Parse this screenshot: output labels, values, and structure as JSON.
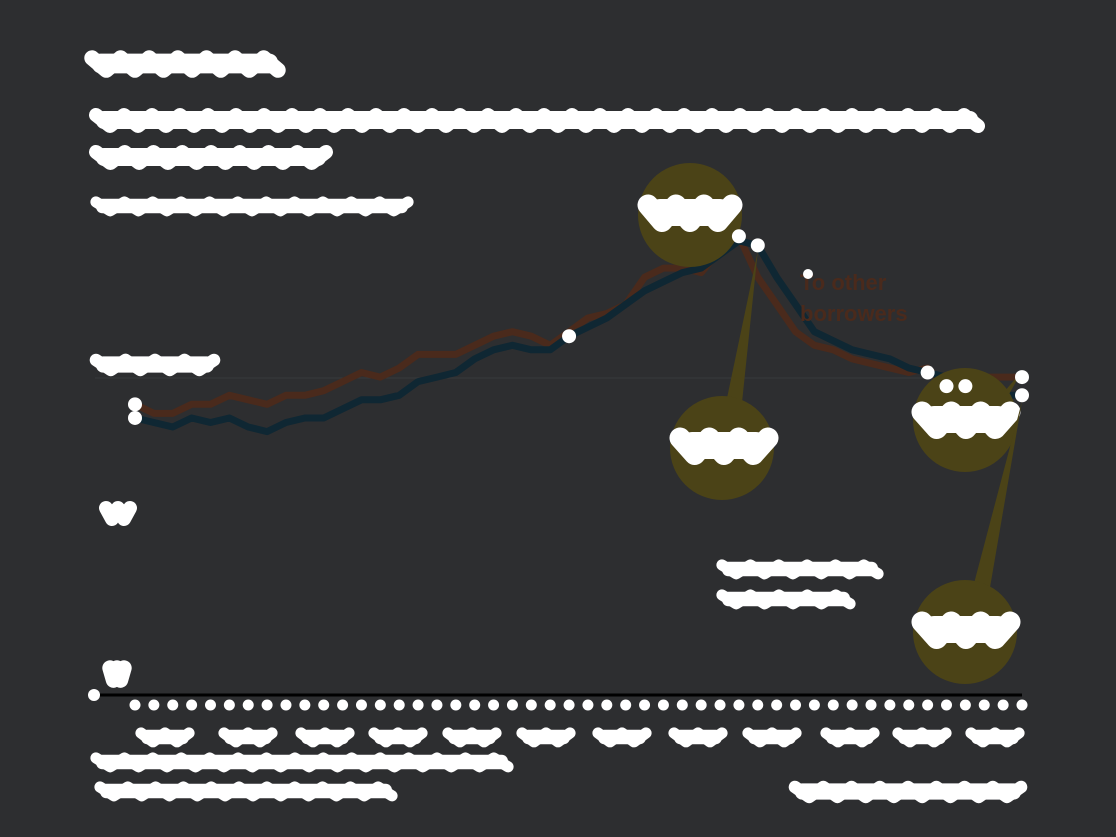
{
  "colors": {
    "background": "#2d2e30",
    "series_other": "#4a2a1c",
    "series_dark": "#0f2733",
    "bubble": "#4b4317",
    "marker": "#ffffff",
    "axis": "#000000",
    "gridline": "#38393b"
  },
  "chart_data": {
    "type": "line",
    "series": [
      {
        "name": "To other borrowers",
        "values": [
          32,
          31,
          31,
          32,
          32,
          33,
          32.5,
          32,
          33,
          33,
          33.5,
          34.5,
          35.5,
          35,
          36,
          37.5,
          37.5,
          37.5,
          38.5,
          39.5,
          40,
          39.5,
          38.5,
          40,
          41.5,
          42,
          43,
          46,
          47,
          47,
          46.5,
          49,
          50.5,
          46,
          43,
          40,
          38.5,
          38,
          37,
          36.5,
          36,
          35.5,
          36,
          34,
          34.5,
          35,
          35,
          35
        ]
      },
      {
        "values": [
          30.5,
          30,
          29.5,
          30.5,
          30,
          30.5,
          29.5,
          29,
          30,
          30.5,
          30.5,
          31.5,
          32.5,
          32.5,
          33,
          34.5,
          35,
          35.5,
          37,
          38,
          38.5,
          38,
          38,
          39.5,
          40.5,
          41.5,
          43,
          44.5,
          45.5,
          46.5,
          47,
          48.5,
          50,
          49.5,
          46,
          43,
          40,
          39,
          38,
          37.5,
          37,
          36,
          35.5,
          35,
          34,
          34,
          33,
          33
        ]
      }
    ],
    "highlighted_points": [
      {
        "series": 0,
        "index": 0
      },
      {
        "series": 1,
        "index": 0
      },
      {
        "series": 1,
        "index": 23
      },
      {
        "series": 0,
        "index": 32
      },
      {
        "series": 1,
        "index": 33
      },
      {
        "series": 1,
        "index": 42
      },
      {
        "series": 0,
        "index": 43
      },
      {
        "series": 1,
        "index": 44
      },
      {
        "series": 0,
        "index": 47
      },
      {
        "series": 1,
        "index": 47
      }
    ],
    "ylim": [
      0,
      60
    ],
    "tick_count": 48
  }
}
